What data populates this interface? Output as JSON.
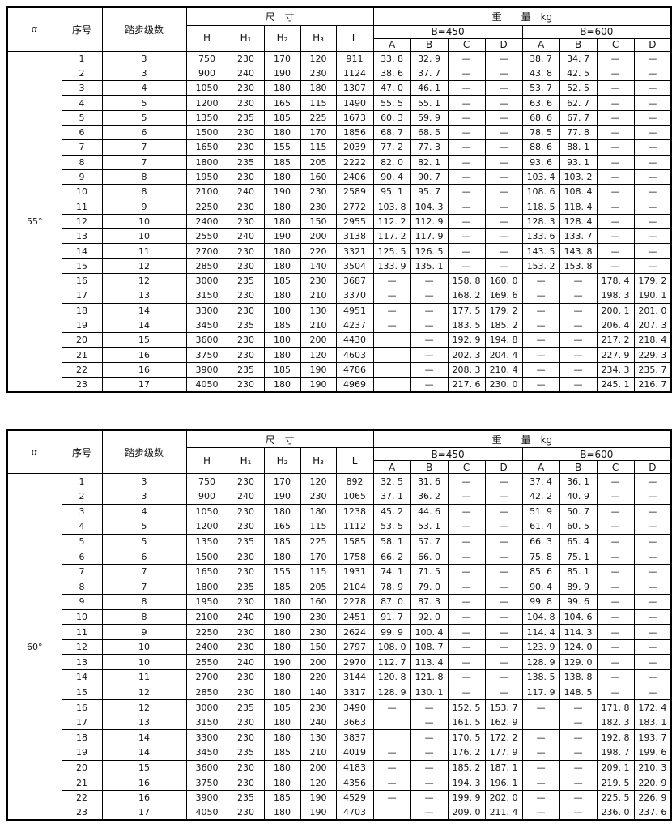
{
  "header": {
    "alpha": "α",
    "serial": "序号",
    "steps": "踏步级数",
    "dimensions": "尺　寸",
    "weight": "重　　量　kg",
    "b450": "B=450",
    "b600": "B=600",
    "dim_cols": [
      "H",
      "H₁",
      "H₂",
      "H₃",
      "L"
    ],
    "weight_cols": [
      "A",
      "B",
      "C",
      "D"
    ]
  },
  "colors": {
    "border": "#000000",
    "text": "#141414",
    "background": "#ffffff"
  },
  "tables": [
    {
      "alpha_value": "55°",
      "rows": [
        [
          "1",
          "3",
          "750",
          "230",
          "170",
          "120",
          "911",
          "33. 8",
          "32. 9",
          "—",
          "—",
          "38. 7",
          "34. 7",
          "—",
          "—"
        ],
        [
          "2",
          "3",
          "900",
          "240",
          "190",
          "230",
          "1124",
          "38. 6",
          "37. 7",
          "—",
          "—",
          "43. 8",
          "42. 5",
          "—",
          "—"
        ],
        [
          "3",
          "4",
          "1050",
          "230",
          "180",
          "180",
          "1307",
          "47. 0",
          "46. 1",
          "—",
          "—",
          "53. 7",
          "52. 5",
          "—",
          "—"
        ],
        [
          "4",
          "5",
          "1200",
          "230",
          "165",
          "115",
          "1490",
          "55. 5",
          "55. 1",
          "—",
          "—",
          "63. 6",
          "62. 7",
          "—",
          "—"
        ],
        [
          "5",
          "5",
          "1350",
          "235",
          "185",
          "225",
          "1673",
          "60. 3",
          "59. 9",
          "—",
          "—",
          "68. 6",
          "67. 7",
          "—",
          "—"
        ],
        [
          "6",
          "6",
          "1500",
          "230",
          "180",
          "170",
          "1856",
          "68. 7",
          "68. 5",
          "—",
          "—",
          "78. 5",
          "77. 8",
          "—",
          "—"
        ],
        [
          "7",
          "7",
          "1650",
          "230",
          "155",
          "115",
          "2039",
          "77. 2",
          "77. 3",
          "—",
          "—",
          "88. 6",
          "88. 1",
          "—",
          "—"
        ],
        [
          "8",
          "7",
          "1800",
          "235",
          "185",
          "205",
          "2222",
          "82. 0",
          "82. 1",
          "—",
          "—",
          "93. 6",
          "93. 1",
          "—",
          "—"
        ],
        [
          "9",
          "8",
          "1950",
          "230",
          "180",
          "160",
          "2406",
          "90. 4",
          "90. 7",
          "—",
          "—",
          "103. 4",
          "103. 2",
          "—",
          "—"
        ],
        [
          "10",
          "8",
          "2100",
          "240",
          "190",
          "230",
          "2589",
          "95. 1",
          "95. 7",
          "—",
          "—",
          "108. 6",
          "108. 4",
          "—",
          "—"
        ],
        [
          "11",
          "9",
          "2250",
          "230",
          "180",
          "230",
          "2772",
          "103. 8",
          "104. 3",
          "—",
          "—",
          "118. 5",
          "118. 4",
          "—",
          "—"
        ],
        [
          "12",
          "10",
          "2400",
          "230",
          "180",
          "150",
          "2955",
          "112. 2",
          "112. 9",
          "—",
          "—",
          "128. 3",
          "128. 4",
          "—",
          "—"
        ],
        [
          "13",
          "10",
          "2550",
          "240",
          "190",
          "200",
          "3138",
          "117. 2",
          "117. 9",
          "—",
          "—",
          "133. 6",
          "133. 7",
          "—",
          "—"
        ],
        [
          "14",
          "11",
          "2700",
          "230",
          "180",
          "220",
          "3321",
          "125. 5",
          "126. 5",
          "—",
          "—",
          "143. 5",
          "143. 8",
          "—",
          "—"
        ],
        [
          "15",
          "12",
          "2850",
          "230",
          "180",
          "140",
          "3504",
          "133. 9",
          "135. 1",
          "—",
          "—",
          "153. 2",
          "153. 8",
          "—",
          "—"
        ],
        [
          "16",
          "12",
          "3000",
          "235",
          "185",
          "230",
          "3687",
          "—",
          "—",
          "158. 8",
          "160. 0",
          "—",
          "—",
          "178. 4",
          "179. 2"
        ],
        [
          "17",
          "13",
          "3150",
          "230",
          "180",
          "210",
          "3370",
          "—",
          "—",
          "168. 2",
          "169. 6",
          "—",
          "—",
          "198. 3",
          "190. 1"
        ],
        [
          "18",
          "14",
          "3300",
          "230",
          "180",
          "130",
          "4951",
          "—",
          "—",
          "177. 5",
          "179. 2",
          "—",
          "—",
          "200. 1",
          "201. 0"
        ],
        [
          "19",
          "14",
          "3450",
          "235",
          "185",
          "210",
          "4237",
          "—",
          "—",
          "183. 5",
          "185. 2",
          "—",
          "—",
          "206. 4",
          "207. 3"
        ],
        [
          "20",
          "15",
          "3600",
          "230",
          "180",
          "200",
          "4430",
          "",
          "—",
          "192. 9",
          "194. 8",
          "—",
          "—",
          "217. 2",
          "218. 4"
        ],
        [
          "21",
          "16",
          "3750",
          "230",
          "180",
          "120",
          "4603",
          "",
          "—",
          "202. 3",
          "204. 4",
          "—",
          "—",
          "227. 9",
          "229. 3"
        ],
        [
          "22",
          "16",
          "3900",
          "235",
          "185",
          "190",
          "4786",
          "",
          "—",
          "208. 3",
          "210. 4",
          "—",
          "—",
          "234. 3",
          "235. 7"
        ],
        [
          "23",
          "17",
          "4050",
          "230",
          "180",
          "190",
          "4969",
          "",
          "—",
          "217. 6",
          "230. 0",
          "—",
          "—",
          "245. 1",
          "216. 7"
        ]
      ]
    },
    {
      "alpha_value": "60°",
      "rows": [
        [
          "1",
          "3",
          "750",
          "230",
          "170",
          "120",
          "892",
          "32. 5",
          "31. 6",
          "—",
          "—",
          "37. 4",
          "36. 1",
          "—",
          "—"
        ],
        [
          "2",
          "3",
          "900",
          "240",
          "190",
          "230",
          "1065",
          "37. 1",
          "36. 2",
          "—",
          "—",
          "42. 2",
          "40. 9",
          "—",
          "—"
        ],
        [
          "3",
          "4",
          "1050",
          "230",
          "180",
          "180",
          "1238",
          "45. 2",
          "44. 6",
          "—",
          "—",
          "51. 9",
          "50. 7",
          "—",
          "—"
        ],
        [
          "4",
          "5",
          "1200",
          "230",
          "165",
          "115",
          "1112",
          "53. 5",
          "53. 1",
          "—",
          "—",
          "61. 4",
          "60. 5",
          "—",
          "—"
        ],
        [
          "5",
          "5",
          "1350",
          "235",
          "185",
          "225",
          "1585",
          "58. 1",
          "57. 7",
          "—",
          "—",
          "66. 3",
          "65. 4",
          "—",
          "—"
        ],
        [
          "6",
          "6",
          "1500",
          "230",
          "180",
          "170",
          "1758",
          "66. 2",
          "66. 0",
          "—",
          "—",
          "75. 8",
          "75. 1",
          "—",
          "—"
        ],
        [
          "7",
          "7",
          "1650",
          "230",
          "155",
          "115",
          "1931",
          "74. 1",
          "71. 5",
          "—",
          "—",
          "85. 6",
          "85. 1",
          "—",
          "—"
        ],
        [
          "8",
          "7",
          "1800",
          "235",
          "185",
          "205",
          "2104",
          "78. 9",
          "79. 0",
          "—",
          "—",
          "90. 4",
          "89. 9",
          "—",
          "—"
        ],
        [
          "9",
          "8",
          "1950",
          "230",
          "180",
          "160",
          "2278",
          "87. 0",
          "87. 3",
          "—",
          "—",
          "99. 8",
          "99. 6",
          "—",
          "—"
        ],
        [
          "10",
          "8",
          "2100",
          "240",
          "190",
          "230",
          "2451",
          "91. 7",
          "92. 0",
          "—",
          "—",
          "104. 8",
          "104. 6",
          "—",
          "—"
        ],
        [
          "11",
          "9",
          "2250",
          "230",
          "180",
          "230",
          "2624",
          "99. 9",
          "100. 4",
          "—",
          "—",
          "114. 4",
          "114. 3",
          "—",
          "—"
        ],
        [
          "12",
          "10",
          "2400",
          "230",
          "180",
          "150",
          "2797",
          "108. 0",
          "108. 7",
          "—",
          "—",
          "123. 9",
          "124. 0",
          "—",
          "—"
        ],
        [
          "13",
          "10",
          "2550",
          "240",
          "190",
          "200",
          "2970",
          "112. 7",
          "113. 4",
          "—",
          "—",
          "128. 9",
          "129. 0",
          "—",
          "—"
        ],
        [
          "14",
          "11",
          "2700",
          "230",
          "180",
          "220",
          "3144",
          "120. 8",
          "121. 8",
          "—",
          "—",
          "138. 5",
          "138. 8",
          "—",
          "—"
        ],
        [
          "15",
          "12",
          "2850",
          "230",
          "180",
          "140",
          "3317",
          "128. 9",
          "130. 1",
          "—",
          "—",
          "117. 9",
          "148. 5",
          "—",
          "—"
        ],
        [
          "16",
          "12",
          "3000",
          "235",
          "185",
          "230",
          "3490",
          "—",
          "—",
          "152. 5",
          "153. 7",
          "—",
          "—",
          "171. 8",
          "172. 4"
        ],
        [
          "17",
          "13",
          "3150",
          "230",
          "180",
          "240",
          "3663",
          "",
          "—",
          "161. 5",
          "162. 9",
          "",
          "—",
          "182. 3",
          "183. 1"
        ],
        [
          "18",
          "14",
          "3300",
          "230",
          "180",
          "130",
          "3837",
          "",
          "—",
          "170. 5",
          "172. 2",
          "—",
          "—",
          "192. 8",
          "193. 7"
        ],
        [
          "19",
          "14",
          "3450",
          "235",
          "185",
          "210",
          "4019",
          "—",
          "—",
          "176. 2",
          "177. 9",
          "—",
          "—",
          "198. 7",
          "199. 6"
        ],
        [
          "20",
          "15",
          "3600",
          "230",
          "180",
          "200",
          "4183",
          "—",
          "—",
          "185. 2",
          "187. 1",
          "—",
          "—",
          "209. 1",
          "210. 3"
        ],
        [
          "21",
          "16",
          "3750",
          "230",
          "180",
          "120",
          "4356",
          "—",
          "—",
          "194. 3",
          "196. 1",
          "—",
          "—",
          "219. 5",
          "220. 9"
        ],
        [
          "22",
          "16",
          "3900",
          "235",
          "185",
          "190",
          "4529",
          "—",
          "—",
          "199. 9",
          "202. 0",
          "—",
          "—",
          "225. 5",
          "226. 9"
        ],
        [
          "23",
          "17",
          "4050",
          "230",
          "180",
          "190",
          "4703",
          "",
          "—",
          "209. 0",
          "211. 4",
          "—",
          "—",
          "236. 0",
          "237. 6"
        ]
      ]
    }
  ]
}
